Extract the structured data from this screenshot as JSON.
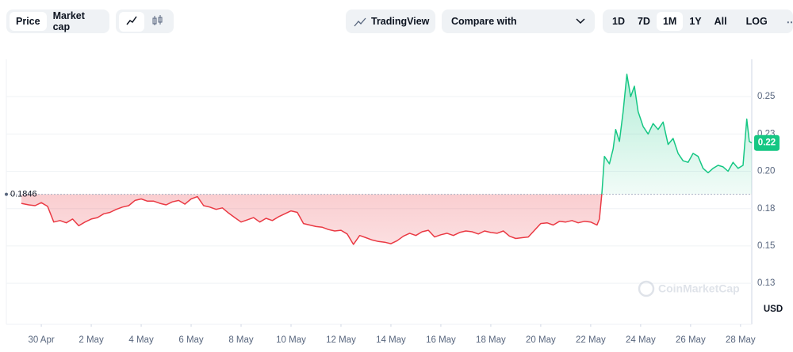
{
  "toolbar": {
    "tabs": [
      "Price",
      "Market cap"
    ],
    "trading_view": "TradingView",
    "compare": "Compare with",
    "ranges": [
      "1D",
      "7D",
      "1M",
      "1Y",
      "All"
    ],
    "log": "LOG"
  },
  "chart_data": {
    "type": "line",
    "x": [
      0.2,
      0.5,
      0.75,
      1.0,
      1.25,
      1.5,
      1.75,
      2.0,
      2.25,
      2.5,
      2.75,
      3.0,
      3.25,
      3.5,
      3.75,
      4.0,
      4.25,
      4.5,
      4.75,
      5.0,
      5.25,
      5.5,
      5.75,
      6.0,
      6.25,
      6.5,
      6.75,
      7.0,
      7.25,
      7.5,
      7.75,
      8.0,
      8.25,
      8.5,
      8.75,
      9.0,
      9.25,
      9.5,
      9.75,
      10.0,
      10.25,
      10.5,
      10.75,
      11.0,
      11.25,
      11.5,
      11.75,
      12.0,
      12.25,
      12.5,
      12.75,
      13.0,
      13.25,
      13.5,
      13.75,
      14.0,
      14.25,
      14.5,
      14.75,
      15.0,
      15.25,
      15.5,
      15.75,
      16.0,
      16.25,
      16.5,
      16.75,
      17.0,
      17.25,
      17.5,
      17.75,
      18.0,
      18.25,
      18.5,
      18.75,
      19.0,
      19.25,
      19.5,
      19.75,
      20.0,
      20.25,
      20.5,
      20.75,
      21.0,
      21.25,
      21.5,
      21.75,
      22.0,
      22.25,
      22.5,
      22.75,
      23.0,
      23.25,
      23.35,
      23.45,
      23.55,
      23.75,
      23.9,
      24.0,
      24.15,
      24.3,
      24.45,
      24.6,
      24.75,
      24.9,
      25.1,
      25.3,
      25.5,
      25.7,
      25.9,
      26.1,
      26.3,
      26.5,
      26.7,
      26.9,
      27.1,
      27.3,
      27.5,
      27.7,
      27.9,
      28.1,
      28.3,
      28.5,
      28.7,
      28.9,
      29.1,
      29.25,
      29.35,
      29.45
    ],
    "series": [
      {
        "name": "Price",
        "values": [
          0.1785,
          0.1775,
          0.177,
          0.179,
          0.1765,
          0.166,
          0.167,
          0.1655,
          0.168,
          0.1635,
          0.166,
          0.168,
          0.169,
          0.1715,
          0.1725,
          0.1745,
          0.176,
          0.177,
          0.1805,
          0.1815,
          0.18,
          0.18,
          0.1785,
          0.1775,
          0.1795,
          0.1805,
          0.178,
          0.1815,
          0.183,
          0.177,
          0.176,
          0.1745,
          0.1755,
          0.172,
          0.169,
          0.166,
          0.1675,
          0.169,
          0.166,
          0.1685,
          0.167,
          0.1695,
          0.1715,
          0.1735,
          0.1725,
          0.165,
          0.164,
          0.163,
          0.1625,
          0.161,
          0.16,
          0.1605,
          0.158,
          0.151,
          0.157,
          0.1555,
          0.154,
          0.153,
          0.1525,
          0.1515,
          0.1535,
          0.1565,
          0.1585,
          0.157,
          0.1595,
          0.1605,
          0.156,
          0.1575,
          0.1585,
          0.157,
          0.159,
          0.16,
          0.1595,
          0.158,
          0.16,
          0.159,
          0.1585,
          0.16,
          0.1565,
          0.155,
          0.1555,
          0.156,
          0.1605,
          0.165,
          0.1655,
          0.164,
          0.1665,
          0.166,
          0.167,
          0.1655,
          0.1665,
          0.166,
          0.164,
          0.168,
          0.186,
          0.21,
          0.205,
          0.215,
          0.228,
          0.22,
          0.24,
          0.265,
          0.25,
          0.257,
          0.24,
          0.23,
          0.225,
          0.232,
          0.228,
          0.233,
          0.218,
          0.222,
          0.212,
          0.207,
          0.206,
          0.212,
          0.21,
          0.202,
          0.199,
          0.202,
          0.204,
          0.203,
          0.2,
          0.206,
          0.202,
          0.204,
          0.235,
          0.22,
          0.219
        ]
      }
    ],
    "reference_line": 0.1846,
    "current_price_label": "0.22",
    "colors": {
      "above": "#16c784",
      "below": "#ea3943"
    },
    "xlim": [
      -0.4,
      29.45
    ],
    "xticks": [
      {
        "value": 1,
        "label": "30 Apr"
      },
      {
        "value": 3,
        "label": "2 May"
      },
      {
        "value": 5,
        "label": "4 May"
      },
      {
        "value": 7,
        "label": "6 May"
      },
      {
        "value": 9,
        "label": "8 May"
      },
      {
        "value": 11,
        "label": "10 May"
      },
      {
        "value": 13,
        "label": "12 May"
      },
      {
        "value": 15,
        "label": "14 May"
      },
      {
        "value": 17,
        "label": "16 May"
      },
      {
        "value": 19,
        "label": "18 May"
      },
      {
        "value": 21,
        "label": "20 May"
      },
      {
        "value": 23,
        "label": "22 May"
      },
      {
        "value": 25,
        "label": "24 May"
      },
      {
        "value": 27,
        "label": "26 May"
      },
      {
        "value": 29,
        "label": "28 May"
      }
    ],
    "ylim": [
      0.0975,
      0.275
    ],
    "yticks": [
      {
        "value": 0.125,
        "label": "0.13"
      },
      0.15,
      {
        "value": 0.175,
        "label": "0.18"
      },
      {
        "value": 0.2,
        "label": "0.20"
      },
      {
        "value": 0.225,
        "label": "0.23"
      },
      0.25
    ],
    "grid": true,
    "watermark": "CoinMarketCap",
    "currency_label": "USD"
  }
}
